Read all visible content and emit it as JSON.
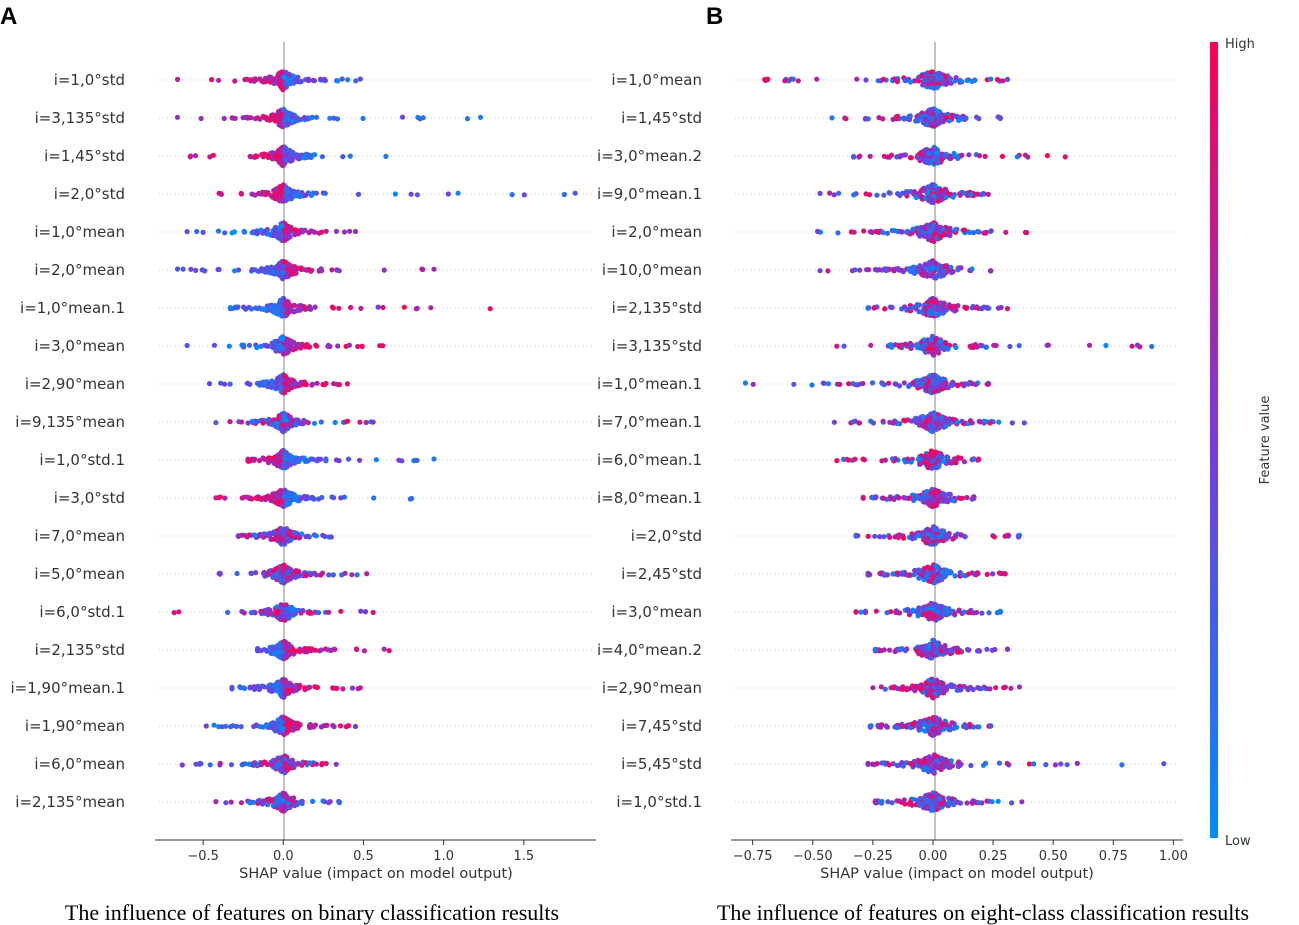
{
  "panel_a_letter": "A",
  "panel_b_letter": "B",
  "colors": {
    "high": "#ff0052",
    "low": "#008bfb",
    "zero_line": "#999999",
    "axis": "#333333"
  },
  "colorbar": {
    "high_label": "High",
    "low_label": "Low",
    "title": "Feature value"
  },
  "chart_data": [
    {
      "type": "scatter",
      "subtype": "shap_beeswarm",
      "title": "",
      "xlabel": "SHAP value (impact on model output)",
      "caption": "The influence of features on binary classification results",
      "xlim": [
        -0.8,
        1.95
      ],
      "xticks": [
        -0.5,
        0.0,
        0.5,
        1.0,
        1.5
      ],
      "xticklabels": [
        "−0.5",
        "0.0",
        "0.5",
        "1.0",
        "1.5"
      ],
      "features": [
        {
          "name": "i=1,0°std",
          "min": -0.66,
          "max": 0.48,
          "skew": "neg"
        },
        {
          "name": "i=3,135°std",
          "min": -0.66,
          "max": 1.23,
          "skew": "neg"
        },
        {
          "name": "i=1,45°std",
          "min": -0.58,
          "max": 0.64,
          "skew": "neg"
        },
        {
          "name": "i=2,0°std",
          "min": -0.4,
          "max": 1.82,
          "skew": "neg"
        },
        {
          "name": "i=1,0°mean",
          "min": -0.6,
          "max": 0.45,
          "skew": "pos"
        },
        {
          "name": "i=2,0°mean",
          "min": -0.66,
          "max": 0.94,
          "skew": "pos"
        },
        {
          "name": "i=1,0°mean.1",
          "min": -0.33,
          "max": 1.29,
          "skew": "pos"
        },
        {
          "name": "i=3,0°mean",
          "min": -0.6,
          "max": 0.62,
          "skew": "pos"
        },
        {
          "name": "i=2,90°mean",
          "min": -0.46,
          "max": 0.4,
          "skew": "pos"
        },
        {
          "name": "i=9,135°mean",
          "min": -0.42,
          "max": 0.56,
          "skew": "mixed"
        },
        {
          "name": "i=1,0°std.1",
          "min": -0.22,
          "max": 0.94,
          "skew": "neg"
        },
        {
          "name": "i=3,0°std",
          "min": -0.42,
          "max": 0.8,
          "skew": "neg"
        },
        {
          "name": "i=7,0°mean",
          "min": -0.28,
          "max": 0.3,
          "skew": "mixed"
        },
        {
          "name": "i=5,0°mean",
          "min": -0.4,
          "max": 0.52,
          "skew": "mixed"
        },
        {
          "name": "i=6,0°std.1",
          "min": -0.68,
          "max": 0.56,
          "skew": "mixed"
        },
        {
          "name": "i=2,135°std",
          "min": -0.16,
          "max": 0.66,
          "skew": "pos"
        },
        {
          "name": "i=1,90°mean.1",
          "min": -0.32,
          "max": 0.48,
          "skew": "pos"
        },
        {
          "name": "i=1,90°mean",
          "min": -0.48,
          "max": 0.45,
          "skew": "pos"
        },
        {
          "name": "i=6,0°mean",
          "min": -0.63,
          "max": 0.33,
          "skew": "mixed"
        },
        {
          "name": "i=2,135°mean",
          "min": -0.42,
          "max": 0.35,
          "skew": "mixed"
        }
      ]
    },
    {
      "type": "scatter",
      "subtype": "shap_beeswarm",
      "title": "",
      "xlabel": "SHAP value (impact on model output)",
      "caption": "The influence of features on eight-class classification results",
      "xlim": [
        -0.84,
        1.04
      ],
      "xticks": [
        -0.75,
        -0.5,
        -0.25,
        0.0,
        0.25,
        0.5,
        0.75,
        1.0
      ],
      "xticklabels": [
        "−0.75",
        "−0.50",
        "−0.25",
        "0.00",
        "0.25",
        "0.50",
        "0.75",
        "1.00"
      ],
      "features": [
        {
          "name": "i=1,0°mean",
          "min": -0.7,
          "max": 0.31,
          "skew": "mixed"
        },
        {
          "name": "i=1,45°std",
          "min": -0.42,
          "max": 0.28,
          "skew": "mixed"
        },
        {
          "name": "i=3,0°mean.2",
          "min": -0.33,
          "max": 0.55,
          "skew": "mixed"
        },
        {
          "name": "i=9,0°mean.1",
          "min": -0.47,
          "max": 0.23,
          "skew": "mixed"
        },
        {
          "name": "i=2,0°mean",
          "min": -0.48,
          "max": 0.39,
          "skew": "mixed"
        },
        {
          "name": "i=10,0°mean",
          "min": -0.47,
          "max": 0.24,
          "skew": "mixed"
        },
        {
          "name": "i=2,135°std",
          "min": -0.27,
          "max": 0.31,
          "skew": "mixed"
        },
        {
          "name": "i=3,135°std",
          "min": -0.4,
          "max": 0.91,
          "skew": "mixed"
        },
        {
          "name": "i=1,0°mean.1",
          "min": -0.78,
          "max": 0.23,
          "skew": "mixed"
        },
        {
          "name": "i=7,0°mean.1",
          "min": -0.41,
          "max": 0.38,
          "skew": "mixed"
        },
        {
          "name": "i=6,0°mean.1",
          "min": -0.4,
          "max": 0.19,
          "skew": "mixed"
        },
        {
          "name": "i=8,0°mean.1",
          "min": -0.29,
          "max": 0.17,
          "skew": "mixed"
        },
        {
          "name": "i=2,0°std",
          "min": -0.32,
          "max": 0.36,
          "skew": "mixed"
        },
        {
          "name": "i=2,45°std",
          "min": -0.27,
          "max": 0.3,
          "skew": "mixed"
        },
        {
          "name": "i=3,0°mean",
          "min": -0.32,
          "max": 0.28,
          "skew": "mixed"
        },
        {
          "name": "i=4,0°mean.2",
          "min": -0.24,
          "max": 0.31,
          "skew": "mixed"
        },
        {
          "name": "i=2,90°mean",
          "min": -0.25,
          "max": 0.36,
          "skew": "mixed"
        },
        {
          "name": "i=7,45°std",
          "min": -0.26,
          "max": 0.24,
          "skew": "mixed"
        },
        {
          "name": "i=5,45°std",
          "min": -0.27,
          "max": 0.96,
          "skew": "mixed"
        },
        {
          "name": "i=1,0°std.1",
          "min": -0.24,
          "max": 0.37,
          "skew": "mixed"
        }
      ]
    }
  ]
}
